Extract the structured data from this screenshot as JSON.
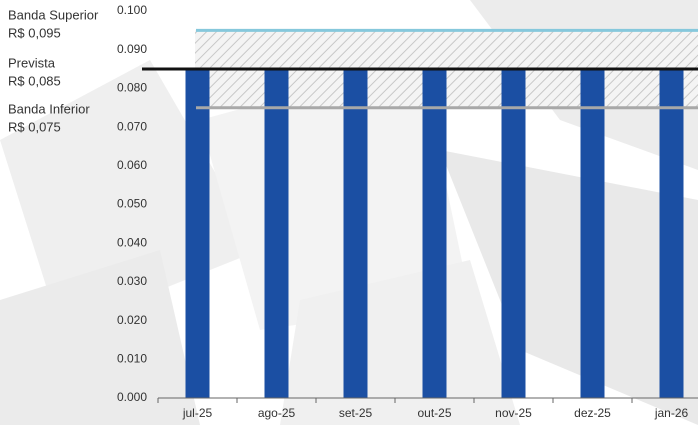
{
  "chart_data": {
    "type": "bar",
    "categories": [
      "jul-25",
      "ago-25",
      "set-25",
      "out-25",
      "nov-25",
      "dez-25",
      "jan-26"
    ],
    "values": [
      0.085,
      0.085,
      0.085,
      0.085,
      0.085,
      0.085,
      0.085
    ],
    "color": "#1b4fa3",
    "ylim": [
      0,
      0.1
    ],
    "yticks": [
      {
        "value": 0,
        "label": "0.000"
      },
      {
        "value": 0.01,
        "label": "0.010"
      },
      {
        "value": 0.02,
        "label": "0.020"
      },
      {
        "value": 0.03,
        "label": "0.030"
      },
      {
        "value": 0.04,
        "label": "0.040"
      },
      {
        "value": 0.05,
        "label": "0.050"
      },
      {
        "value": 0.06,
        "label": "0.060"
      },
      {
        "value": 0.07,
        "label": "0.070"
      },
      {
        "value": 0.08,
        "label": "0.080"
      },
      {
        "value": 0.09,
        "label": "0.090"
      },
      {
        "value": 0.1,
        "label": "0.100"
      }
    ],
    "bands": [
      {
        "name": "Banda Superior",
        "label": "R$ 0,095",
        "value": 0.095,
        "color": "#86c8dc"
      },
      {
        "name": "Prevista",
        "label": "R$ 0,085",
        "value": 0.085,
        "color": "#111111"
      },
      {
        "name": "Banda Inferior",
        "label": "R$ 0,075",
        "value": 0.075,
        "color": "#a8a8a8"
      }
    ]
  }
}
